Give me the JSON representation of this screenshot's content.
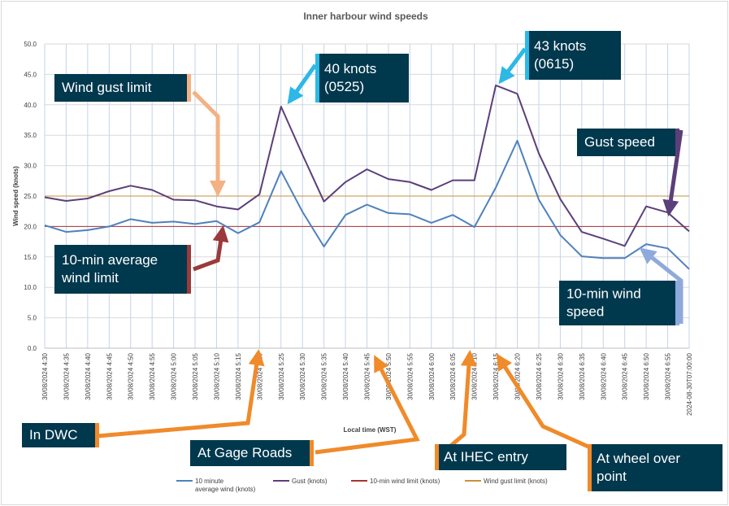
{
  "chart_data": {
    "type": "line",
    "title": "Inner harbour wind speeds",
    "xlabel": "Local time (WST)",
    "ylabel": "Wind speed (knots)",
    "ylim": [
      0,
      50
    ],
    "yticks": [
      "0.0",
      "5.0",
      "10.0",
      "15.0",
      "20.0",
      "25.0",
      "30.0",
      "35.0",
      "40.0",
      "45.0",
      "50.0"
    ],
    "grid": true,
    "categories": [
      "30/08/2024 4:30",
      "30/08/2024 4:35",
      "30/08/2024 4:40",
      "30/08/2024 4:45",
      "30/08/2024 4:50",
      "30/08/2024 4:55",
      "30/08/2024 5:00",
      "30/08/2024 5:05",
      "30/08/2024 5:10",
      "30/08/2024 5:15",
      "30/08/2024 5:20",
      "30/08/2024 5:25",
      "30/08/2024 5:30",
      "30/08/2024 5:35",
      "30/08/2024 5:40",
      "30/08/2024 5:45",
      "30/08/2024 5:50",
      "30/08/2024 5:55",
      "30/08/2024 6:00",
      "30/08/2024 6:05",
      "30/08/2024 6:10",
      "30/08/2024 6:15",
      "30/08/2024 6:20",
      "30/08/2024 6:25",
      "30/08/2024 6:30",
      "30/08/2024 6:35",
      "30/08/2024 6:40",
      "30/08/2024 6:45",
      "30/08/2024 6:50",
      "30/08/2024 6:55",
      "2024-08-30T07:00:00"
    ],
    "series": [
      {
        "name": "10 minute average wind (knots)",
        "color": "#4f81bd",
        "values": [
          20.2,
          19.1,
          19.4,
          20.0,
          21.2,
          20.6,
          20.8,
          20.4,
          20.9,
          18.9,
          20.7,
          29.1,
          22.4,
          16.7,
          21.9,
          23.6,
          22.2,
          22.0,
          20.6,
          21.9,
          19.9,
          26.4,
          34.1,
          24.4,
          18.6,
          15.1,
          14.8,
          14.8,
          17.1,
          16.4,
          13.0
        ]
      },
      {
        "name": "Gust (knots)",
        "color": "#5b3f7a",
        "values": [
          24.8,
          24.2,
          24.6,
          25.8,
          26.7,
          26.0,
          24.4,
          24.3,
          23.3,
          22.8,
          25.3,
          39.7,
          31.8,
          24.1,
          27.3,
          29.4,
          27.8,
          27.3,
          26.0,
          27.6,
          27.6,
          43.2,
          41.8,
          32.0,
          24.5,
          19.1,
          18.0,
          16.8,
          23.3,
          22.3,
          19.2
        ]
      },
      {
        "name": "10-min wind limit (knots)",
        "color": "#a83434",
        "values": [
          20,
          20,
          20,
          20,
          20,
          20,
          20,
          20,
          20,
          20,
          20,
          20,
          20,
          20,
          20,
          20,
          20,
          20,
          20,
          20,
          20,
          20,
          20,
          20,
          20,
          20,
          20,
          20,
          20,
          20,
          20
        ]
      },
      {
        "name": "Wind gust limit (knots)",
        "color": "#c9913d",
        "values": [
          25,
          25,
          25,
          25,
          25,
          25,
          25,
          25,
          25,
          25,
          25,
          25,
          25,
          25,
          25,
          25,
          25,
          25,
          25,
          25,
          25,
          25,
          25,
          25,
          25,
          25,
          25,
          25,
          25,
          25,
          25
        ]
      }
    ],
    "legend": {
      "placement": "bottom"
    },
    "annotations": [
      {
        "id": "gust-limit",
        "lines": [
          "Wind gust limit"
        ],
        "accent": "#f4b183",
        "box_color": "#00384d"
      },
      {
        "id": "avg-limit",
        "lines": [
          "10-min average",
          "wind limit"
        ],
        "accent": "#9b3a3a",
        "box_color": "#00384d"
      },
      {
        "id": "peak1",
        "lines": [
          "40 knots",
          "(0525)"
        ],
        "accent": "#2db8e6",
        "box_color": "#00384d"
      },
      {
        "id": "peak2",
        "lines": [
          "43 knots",
          "(0615)"
        ],
        "accent": "#2db8e6",
        "box_color": "#00384d"
      },
      {
        "id": "gust-speed",
        "lines": [
          "Gust speed"
        ],
        "accent": "#5b3f7a",
        "box_color": "#00384d"
      },
      {
        "id": "avg-speed",
        "lines": [
          "10-min wind",
          "speed"
        ],
        "accent": "#8fa9dc",
        "box_color": "#00384d"
      },
      {
        "id": "dwc",
        "lines": [
          "In DWC"
        ],
        "accent": "#f08a2a",
        "box_color": "#00384d"
      },
      {
        "id": "gage",
        "lines": [
          "At Gage Roads"
        ],
        "accent": "#f08a2a",
        "box_color": "#00384d"
      },
      {
        "id": "ihec",
        "lines": [
          "At IHEC entry"
        ],
        "accent": "#f08a2a",
        "box_color": "#00384d"
      },
      {
        "id": "wheel",
        "lines": [
          "At wheel over",
          "point"
        ],
        "accent": "#f08a2a",
        "box_color": "#00384d"
      }
    ]
  }
}
